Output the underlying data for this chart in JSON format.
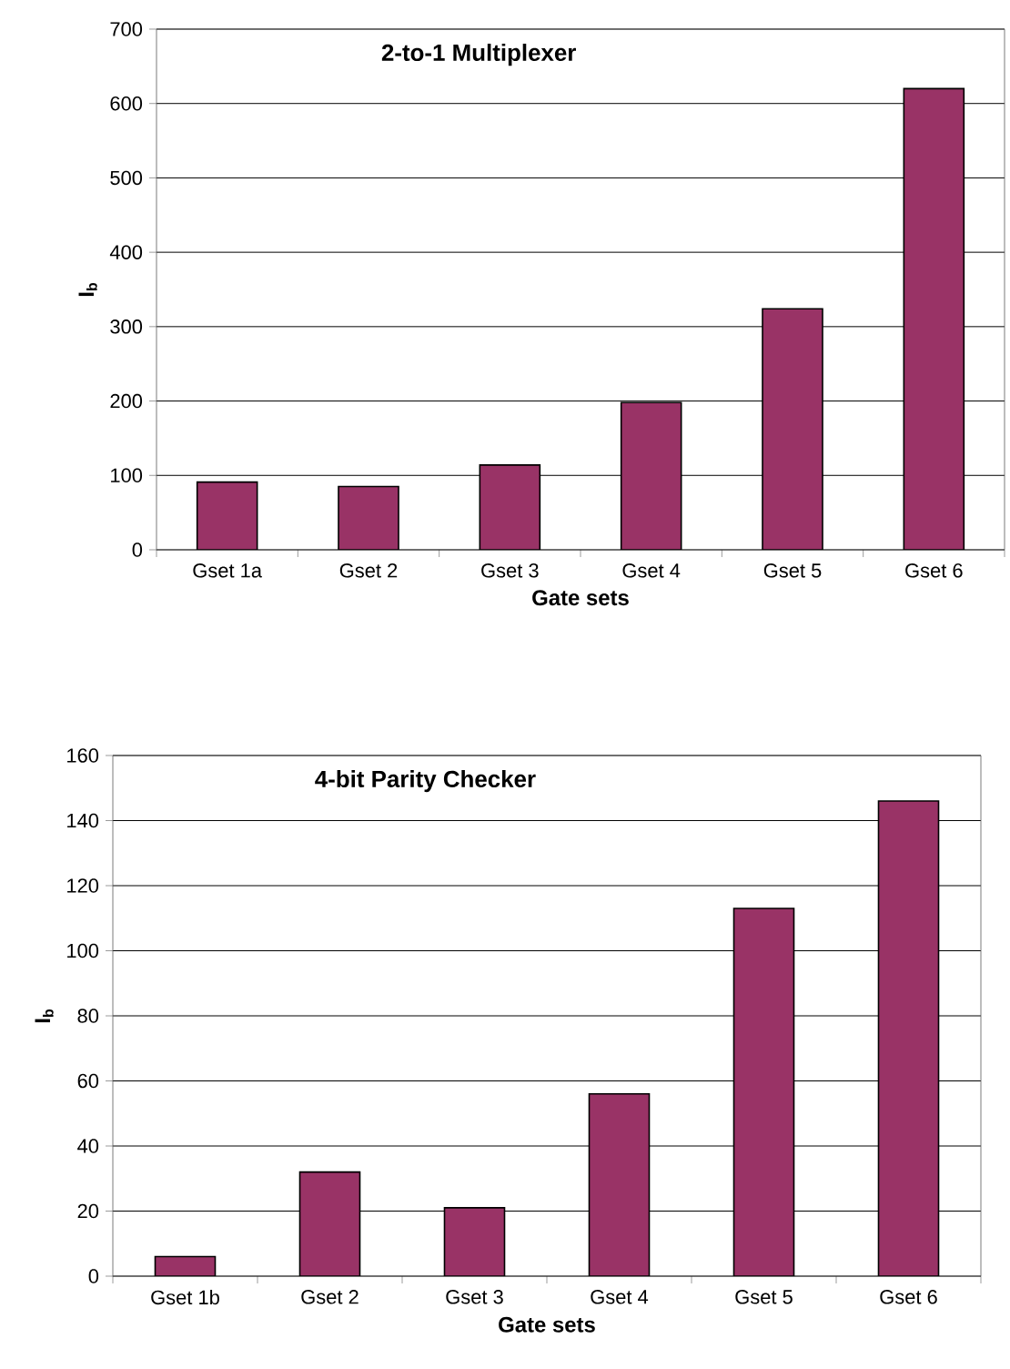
{
  "chart_data": [
    {
      "type": "bar",
      "title": "2-to-1 Multiplexer",
      "xlabel": "Gate sets",
      "ylabel": "I$_{b}$",
      "categories": [
        "Gset 1a",
        "Gset 2",
        "Gset 3",
        "Gset 4",
        "Gset 5",
        "Gset 6"
      ],
      "values": [
        91,
        85,
        114,
        198,
        324,
        620
      ],
      "color": "#993366",
      "ylim": [
        0,
        700
      ],
      "yticks": [
        0,
        100,
        200,
        300,
        400,
        500,
        600,
        700
      ],
      "grid": "y"
    },
    {
      "type": "bar",
      "title": "4-bit Parity Checker",
      "xlabel": "Gate sets",
      "ylabel": "I$_{b}$",
      "categories": [
        "Gset 1b",
        "Gset 2",
        "Gset 3",
        "Gset 4",
        "Gset 5",
        "Gset 6"
      ],
      "values": [
        6,
        32,
        21,
        56,
        113,
        146
      ],
      "color": "#993366",
      "ylim": [
        0,
        160
      ],
      "yticks": [
        0,
        20,
        40,
        60,
        80,
        100,
        120,
        140,
        160
      ],
      "grid": "y"
    }
  ]
}
